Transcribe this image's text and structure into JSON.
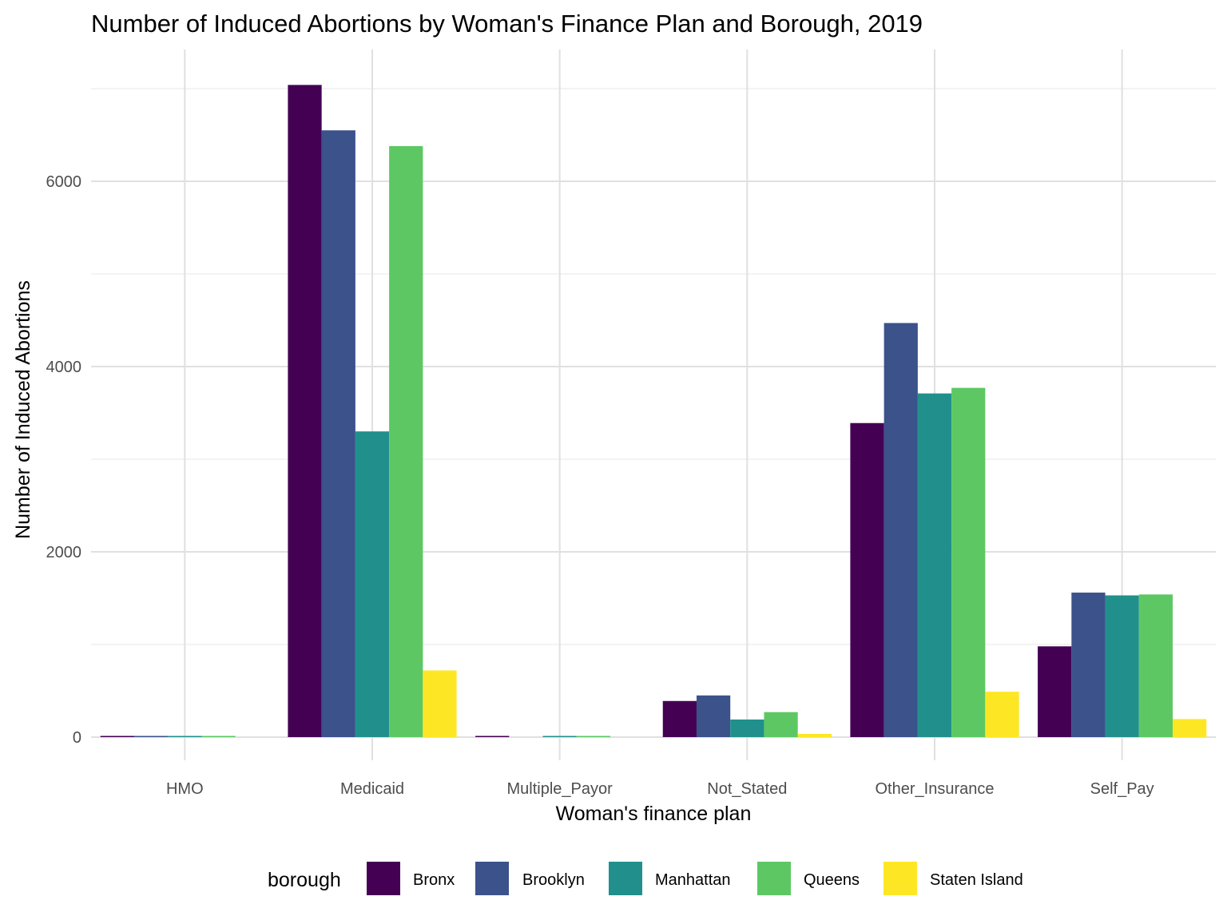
{
  "chart_data": {
    "type": "bar",
    "title": "Number of Induced Abortions by Woman's Finance Plan and Borough, 2019",
    "xlabel": "Woman's finance plan",
    "ylabel": "Number of Induced Abortions",
    "categories": [
      "HMO",
      "Medicaid",
      "Multiple_Payor",
      "Not_Stated",
      "Other_Insurance",
      "Self_Pay"
    ],
    "series": [
      {
        "name": "Bronx",
        "color": "#440154",
        "values": [
          8,
          7040,
          5,
          390,
          3390,
          980
        ]
      },
      {
        "name": "Brooklyn",
        "color": "#3B528B",
        "values": [
          6,
          6550,
          0,
          450,
          4470,
          1560
        ]
      },
      {
        "name": "Manhattan",
        "color": "#21908C",
        "values": [
          5,
          3300,
          3,
          190,
          3710,
          1530
        ]
      },
      {
        "name": "Queens",
        "color": "#5DC863",
        "values": [
          7,
          6380,
          2,
          270,
          3770,
          1540
        ]
      },
      {
        "name": "Staten Island",
        "color": "#FDE725",
        "values": [
          0,
          720,
          0,
          35,
          490,
          195
        ]
      }
    ],
    "y_ticks": [
      0,
      2000,
      4000,
      6000
    ],
    "ylim": [
      -300,
      7200
    ],
    "grid": true,
    "legend": {
      "title": "borough",
      "position": "bottom"
    }
  }
}
